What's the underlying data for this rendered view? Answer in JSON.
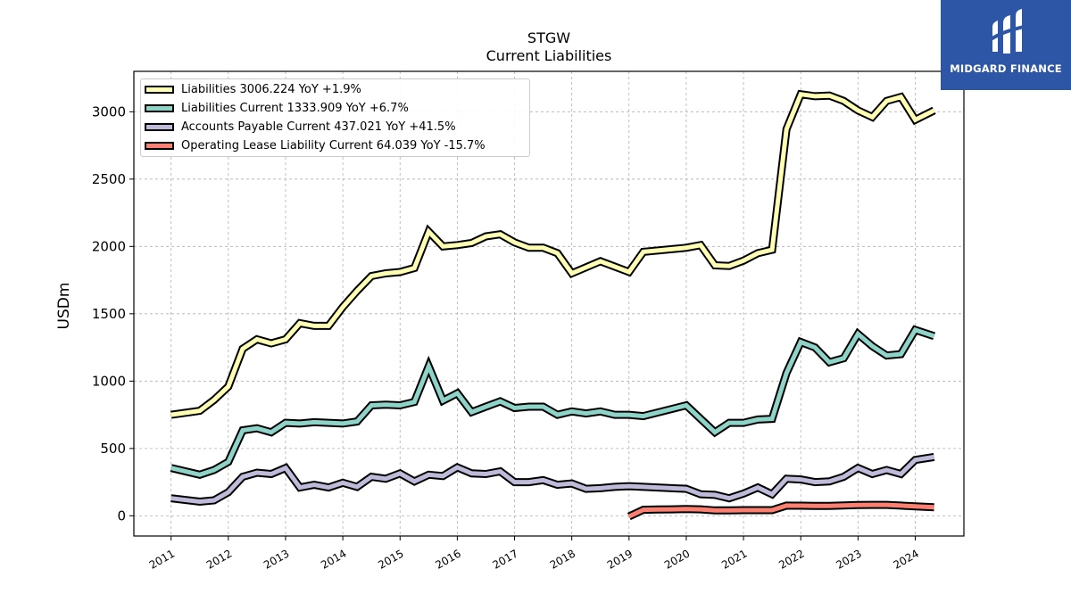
{
  "title": {
    "line1": "STGW",
    "line2": "Current  Liabilities"
  },
  "logo": {
    "text": "MIDGARD FINANCE"
  },
  "chart_data": {
    "type": "line",
    "ylabel": "USDm",
    "ylim": [
      -150,
      3300
    ],
    "yticks": [
      0,
      500,
      1000,
      1500,
      2000,
      2500,
      3000
    ],
    "xlim": [
      2010.35,
      2024.85
    ],
    "xticks": [
      2011,
      2012,
      2013,
      2014,
      2015,
      2016,
      2017,
      2018,
      2019,
      2020,
      2021,
      2022,
      2023,
      2024
    ],
    "grid": true,
    "legend_position": "top-left",
    "series": [
      {
        "name": "Liabilities",
        "legend": "Liabilities  3006.224 YoY +1.9%",
        "color": "#ffffb3",
        "x": [
          2011.0,
          2011.5,
          2011.75,
          2012.0,
          2012.25,
          2012.5,
          2012.75,
          2013.0,
          2013.25,
          2013.5,
          2013.75,
          2014.0,
          2014.25,
          2014.5,
          2014.75,
          2015.0,
          2015.25,
          2015.5,
          2015.75,
          2016.0,
          2016.25,
          2016.5,
          2016.75,
          2017.0,
          2017.25,
          2017.5,
          2017.75,
          2018.0,
          2018.5,
          2019.0,
          2019.25,
          2020.0,
          2020.25,
          2020.5,
          2020.75,
          2021.0,
          2021.25,
          2021.5,
          2021.75,
          2022.0,
          2022.25,
          2022.5,
          2022.75,
          2023.0,
          2023.25,
          2023.5,
          2023.75,
          2024.0,
          2024.33
        ],
        "values": [
          750,
          780,
          860,
          960,
          1240,
          1310,
          1280,
          1310,
          1430,
          1410,
          1410,
          1550,
          1670,
          1780,
          1800,
          1810,
          1840,
          2110,
          2000,
          2010,
          2025,
          2075,
          2090,
          2030,
          1990,
          1990,
          1950,
          1800,
          1890,
          1810,
          1960,
          1990,
          2010,
          1860,
          1855,
          1895,
          1950,
          1975,
          2870,
          3130,
          3115,
          3120,
          3080,
          3010,
          2960,
          3080,
          3110,
          2940,
          3010
        ]
      },
      {
        "name": "Liabilities Current",
        "legend": "Liabilities Current  1333.909 YoY +6.7%",
        "color": "#8dd3c7",
        "x": [
          2011.0,
          2011.5,
          2011.75,
          2012.0,
          2012.25,
          2012.5,
          2012.75,
          2013.0,
          2013.25,
          2013.5,
          2013.75,
          2014.0,
          2014.25,
          2014.5,
          2014.75,
          2015.0,
          2015.25,
          2015.5,
          2015.75,
          2016.0,
          2016.25,
          2016.5,
          2016.75,
          2017.0,
          2017.25,
          2017.5,
          2017.75,
          2018.0,
          2018.25,
          2018.5,
          2018.75,
          2019.0,
          2019.25,
          2020.0,
          2020.5,
          2020.75,
          2021.0,
          2021.25,
          2021.5,
          2021.75,
          2022.0,
          2022.25,
          2022.5,
          2022.75,
          2023.0,
          2023.25,
          2023.5,
          2023.75,
          2024.0,
          2024.33
        ],
        "values": [
          355,
          305,
          340,
          400,
          635,
          650,
          620,
          690,
          685,
          695,
          690,
          685,
          700,
          820,
          825,
          820,
          845,
          1110,
          855,
          910,
          770,
          810,
          850,
          800,
          810,
          810,
          750,
          775,
          760,
          775,
          750,
          750,
          740,
          820,
          620,
          690,
          690,
          715,
          720,
          1060,
          1290,
          1250,
          1140,
          1170,
          1350,
          1260,
          1190,
          1200,
          1380,
          1334
        ]
      },
      {
        "name": "Accounts Payable Current",
        "legend": "Accounts Payable Current  437.021 YoY +41.5%",
        "color": "#bebada",
        "x": [
          2011.0,
          2011.5,
          2011.75,
          2012.0,
          2012.25,
          2012.5,
          2012.75,
          2013.0,
          2013.25,
          2013.5,
          2013.75,
          2014.0,
          2014.25,
          2014.5,
          2014.75,
          2015.0,
          2015.25,
          2015.5,
          2015.75,
          2016.0,
          2016.25,
          2016.5,
          2016.75,
          2017.0,
          2017.25,
          2017.5,
          2017.75,
          2018.0,
          2018.25,
          2018.5,
          2018.75,
          2019.0,
          2019.25,
          2020.0,
          2020.25,
          2020.5,
          2020.75,
          2021.0,
          2021.25,
          2021.5,
          2021.75,
          2022.0,
          2022.25,
          2022.5,
          2022.75,
          2023.0,
          2023.25,
          2023.5,
          2023.75,
          2024.0,
          2024.33
        ],
        "values": [
          130,
          105,
          115,
          175,
          290,
          320,
          310,
          355,
          210,
          230,
          210,
          245,
          215,
          290,
          275,
          315,
          255,
          305,
          295,
          360,
          315,
          310,
          330,
          250,
          250,
          265,
          230,
          240,
          200,
          205,
          215,
          220,
          215,
          200,
          160,
          155,
          130,
          165,
          210,
          160,
          275,
          270,
          250,
          255,
          290,
          355,
          310,
          340,
          310,
          415,
          437
        ]
      },
      {
        "name": "Operating Lease Liability Current",
        "legend": "Operating Lease Liability Current  64.039 YoY -15.7%",
        "color": "#fb8072",
        "x": [
          2019.0,
          2019.25,
          2019.5,
          2019.75,
          2020.0,
          2020.25,
          2020.5,
          2020.75,
          2021.0,
          2021.25,
          2021.5,
          2021.75,
          2022.0,
          2022.25,
          2022.5,
          2022.75,
          2023.0,
          2023.25,
          2023.5,
          2023.75,
          2024.0,
          2024.33
        ],
        "values": [
          -5,
          45,
          47,
          48,
          50,
          48,
          40,
          40,
          42,
          42,
          42,
          76,
          75,
          74,
          73,
          77,
          80,
          81,
          81,
          76,
          70,
          64
        ]
      }
    ]
  }
}
